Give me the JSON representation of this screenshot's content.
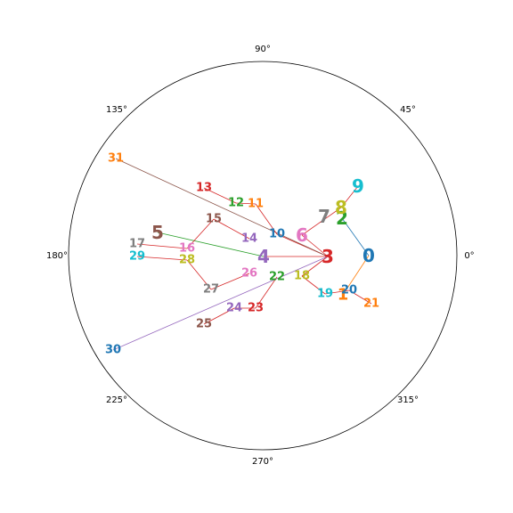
{
  "diagram": {
    "angle_labels": [
      "0°",
      "45°",
      "90°",
      "135°",
      "180°",
      "225°",
      "270°",
      "315°"
    ],
    "nodes": [
      {
        "id": "0",
        "color": "#1f77b4"
      },
      {
        "id": "1",
        "color": "#ff7f0e"
      },
      {
        "id": "2",
        "color": "#2ca02c"
      },
      {
        "id": "3",
        "color": "#d62728"
      },
      {
        "id": "4",
        "color": "#9467bd"
      },
      {
        "id": "5",
        "color": "#8c564b"
      },
      {
        "id": "6",
        "color": "#e377c2"
      },
      {
        "id": "7",
        "color": "#7f7f7f"
      },
      {
        "id": "8",
        "color": "#bcbd22"
      },
      {
        "id": "9",
        "color": "#17becf"
      },
      {
        "id": "10",
        "color": "#1f77b4"
      },
      {
        "id": "11",
        "color": "#ff7f0e"
      },
      {
        "id": "12",
        "color": "#2ca02c"
      },
      {
        "id": "13",
        "color": "#d62728"
      },
      {
        "id": "14",
        "color": "#9467bd"
      },
      {
        "id": "15",
        "color": "#8c564b"
      },
      {
        "id": "16",
        "color": "#e377c2"
      },
      {
        "id": "17",
        "color": "#7f7f7f"
      },
      {
        "id": "18",
        "color": "#bcbd22"
      },
      {
        "id": "19",
        "color": "#17becf"
      },
      {
        "id": "20",
        "color": "#1f77b4"
      },
      {
        "id": "21",
        "color": "#ff7f0e"
      },
      {
        "id": "22",
        "color": "#2ca02c"
      },
      {
        "id": "23",
        "color": "#d62728"
      },
      {
        "id": "24",
        "color": "#9467bd"
      },
      {
        "id": "25",
        "color": "#8c564b"
      },
      {
        "id": "26",
        "color": "#e377c2"
      },
      {
        "id": "27",
        "color": "#7f7f7f"
      },
      {
        "id": "28",
        "color": "#bcbd22"
      },
      {
        "id": "29",
        "color": "#17becf"
      },
      {
        "id": "30",
        "color": "#1f77b4"
      },
      {
        "id": "31",
        "color": "#ff7f0e"
      }
    ],
    "edges": [
      {
        "from": "0",
        "to": "2",
        "color": "#1f77b4"
      },
      {
        "from": "0",
        "to": "1",
        "color": "#ff7f0e"
      },
      {
        "from": "3",
        "to": "4",
        "color": "#d62728"
      },
      {
        "from": "3",
        "to": "6",
        "color": "#d62728"
      },
      {
        "from": "3",
        "to": "10",
        "color": "#d62728"
      },
      {
        "from": "3",
        "to": "18",
        "color": "#d62728"
      },
      {
        "from": "3",
        "to": "31",
        "color": "#8c564b"
      },
      {
        "from": "3",
        "to": "30",
        "color": "#9467bd"
      },
      {
        "from": "4",
        "to": "5",
        "color": "#2ca02c"
      },
      {
        "from": "6",
        "to": "8",
        "color": "#d62728"
      },
      {
        "from": "8",
        "to": "9",
        "color": "#d62728"
      },
      {
        "from": "10",
        "to": "11",
        "color": "#d62728"
      },
      {
        "from": "11",
        "to": "12",
        "color": "#d62728"
      },
      {
        "from": "12",
        "to": "13",
        "color": "#d62728"
      },
      {
        "from": "14",
        "to": "15",
        "color": "#d62728"
      },
      {
        "from": "15",
        "to": "16",
        "color": "#d62728"
      },
      {
        "from": "16",
        "to": "17",
        "color": "#d62728"
      },
      {
        "from": "18",
        "to": "19",
        "color": "#d62728"
      },
      {
        "from": "19",
        "to": "20",
        "color": "#d62728"
      },
      {
        "from": "20",
        "to": "21",
        "color": "#d62728"
      },
      {
        "from": "22",
        "to": "23",
        "color": "#d62728"
      },
      {
        "from": "23",
        "to": "24",
        "color": "#d62728"
      },
      {
        "from": "24",
        "to": "25",
        "color": "#d62728"
      },
      {
        "from": "26",
        "to": "27",
        "color": "#d62728"
      },
      {
        "from": "27",
        "to": "28",
        "color": "#d62728"
      },
      {
        "from": "28",
        "to": "29",
        "color": "#d62728"
      }
    ]
  }
}
